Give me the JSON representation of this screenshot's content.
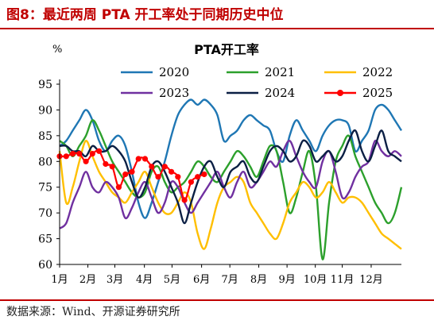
{
  "figure": {
    "title": "图8：最近两周 PTA 开工率处于同期历史中位",
    "source": "数据来源：Wind、开源证券研究所"
  },
  "chart_data": {
    "type": "line",
    "title": "PTA开工率",
    "ylabel": "%",
    "ylim": [
      60,
      95
    ],
    "yticks": [
      60,
      65,
      70,
      75,
      80,
      85,
      90,
      95
    ],
    "x_domain": [
      0,
      52
    ],
    "x_ticks": [
      {
        "label": "1月",
        "x": 0
      },
      {
        "label": "2月",
        "x": 4.3
      },
      {
        "label": "3月",
        "x": 8.4
      },
      {
        "label": "4月",
        "x": 12.9
      },
      {
        "label": "5月",
        "x": 17.1
      },
      {
        "label": "6月",
        "x": 21.6
      },
      {
        "label": "7月",
        "x": 25.9
      },
      {
        "label": "8月",
        "x": 30.3
      },
      {
        "label": "9月",
        "x": 34.6
      },
      {
        "label": "10月",
        "x": 38.9
      },
      {
        "label": "11月",
        "x": 43.0
      },
      {
        "label": "12月",
        "x": 47.4
      }
    ],
    "grid": false,
    "legend_position": "top",
    "series": [
      {
        "name": "2020",
        "color": "#1f77b4",
        "markers": false,
        "values": [
          83,
          84,
          86,
          88,
          90,
          88,
          84,
          82,
          84,
          85,
          83,
          78,
          72,
          69,
          72,
          76,
          80,
          85,
          89,
          91,
          92,
          91,
          92,
          91,
          89,
          84,
          85,
          86,
          88,
          89,
          88,
          87,
          86,
          82,
          80,
          85,
          88,
          86,
          84,
          82,
          85,
          87,
          88,
          88,
          87,
          82,
          84,
          86,
          90,
          91,
          90,
          88,
          86
        ]
      },
      {
        "name": "2021",
        "color": "#2ca02c",
        "markers": false,
        "values": [
          84,
          83,
          81,
          83,
          85,
          88,
          86,
          83,
          80,
          78,
          76,
          74,
          73,
          74,
          78,
          79,
          76,
          74,
          75,
          76,
          78,
          80,
          79,
          77,
          76,
          78,
          80,
          82,
          81,
          79,
          77,
          80,
          83,
          82,
          76,
          70,
          73,
          78,
          82,
          75,
          61,
          72,
          80,
          83,
          85,
          81,
          78,
          75,
          72,
          70,
          68,
          70,
          75
        ]
      },
      {
        "name": "2022",
        "color": "#ffbf00",
        "markers": false,
        "values": [
          82,
          72,
          75,
          80,
          84,
          81,
          78,
          76,
          74,
          73,
          72,
          74,
          76,
          78,
          75,
          72,
          70,
          70,
          72,
          74,
          72,
          66,
          63,
          67,
          72,
          75,
          76,
          77,
          76,
          72,
          70,
          68,
          66,
          65,
          68,
          72,
          74,
          76,
          75,
          73,
          74,
          76,
          74,
          72,
          73,
          73,
          72,
          70,
          68,
          66,
          65,
          64,
          63
        ]
      },
      {
        "name": "2023",
        "color": "#7030a0",
        "markers": false,
        "values": [
          67,
          68,
          72,
          75,
          78,
          75,
          74,
          76,
          75,
          73,
          69,
          71,
          74,
          76,
          73,
          70,
          72,
          76,
          75,
          72,
          70,
          72,
          74,
          76,
          78,
          75,
          73,
          76,
          78,
          75,
          76,
          78,
          80,
          79,
          82,
          84,
          81,
          78,
          76,
          75,
          80,
          82,
          78,
          73,
          74,
          77,
          79,
          80,
          84,
          82,
          81,
          82,
          81
        ]
      },
      {
        "name": "2024",
        "color": "#0b1f44",
        "markers": false,
        "values": [
          83,
          83,
          82,
          82,
          81,
          83,
          82,
          82,
          83,
          82,
          80,
          76,
          73,
          75,
          79,
          80,
          78,
          75,
          72,
          68,
          72,
          76,
          79,
          80,
          77,
          75,
          78,
          79,
          80,
          77,
          76,
          79,
          82,
          83,
          82,
          80,
          81,
          84,
          83,
          80,
          81,
          82,
          80,
          81,
          84,
          86,
          82,
          80,
          83,
          86,
          82,
          81,
          80
        ]
      },
      {
        "name": "2025",
        "color": "#ff0000",
        "markers": true,
        "values": [
          81,
          81,
          81.5,
          81.5,
          80,
          81.5,
          82,
          79.5,
          79,
          75,
          77.5,
          78,
          80.5,
          80.5,
          79,
          77,
          79,
          78,
          77,
          72.5,
          76,
          77,
          77.5
        ]
      }
    ]
  }
}
